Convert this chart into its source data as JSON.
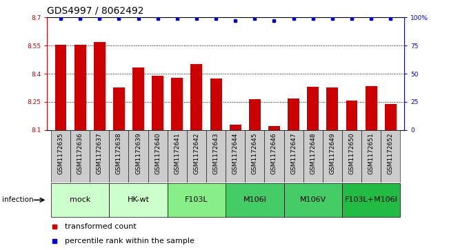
{
  "title": "GDS4997 / 8062492",
  "samples": [
    "GSM1172635",
    "GSM1172636",
    "GSM1172637",
    "GSM1172638",
    "GSM1172639",
    "GSM1172640",
    "GSM1172641",
    "GSM1172642",
    "GSM1172643",
    "GSM1172644",
    "GSM1172645",
    "GSM1172646",
    "GSM1172647",
    "GSM1172648",
    "GSM1172649",
    "GSM1172650",
    "GSM1172651",
    "GSM1172652"
  ],
  "bar_values": [
    8.553,
    8.553,
    8.57,
    8.328,
    8.435,
    8.39,
    8.38,
    8.45,
    8.375,
    8.128,
    8.265,
    8.12,
    8.268,
    8.33,
    8.328,
    8.258,
    8.335,
    8.24
  ],
  "percentile_values": [
    99,
    99,
    99,
    99,
    99,
    99,
    99,
    99,
    99,
    97,
    99,
    97,
    99,
    99,
    99,
    99,
    99,
    99
  ],
  "bar_color": "#cc0000",
  "percentile_color": "#0000cc",
  "ylim_left": [
    8.1,
    8.7
  ],
  "ylim_right": [
    0,
    100
  ],
  "yticks_left": [
    8.1,
    8.25,
    8.4,
    8.55,
    8.7
  ],
  "yticks_right": [
    0,
    25,
    50,
    75,
    100
  ],
  "ytick_labels_left": [
    "8.1",
    "8.25",
    "8.4",
    "8.55",
    "8.7"
  ],
  "ytick_labels_right": [
    "0",
    "25",
    "50",
    "75",
    "100%"
  ],
  "grid_yticks": [
    8.25,
    8.4,
    8.55
  ],
  "groups": [
    {
      "label": "mock",
      "start": 0,
      "end": 2,
      "color": "#ccffcc"
    },
    {
      "label": "HK-wt",
      "start": 3,
      "end": 5,
      "color": "#ccffcc"
    },
    {
      "label": "F103L",
      "start": 6,
      "end": 8,
      "color": "#88ee88"
    },
    {
      "label": "M106I",
      "start": 9,
      "end": 11,
      "color": "#44cc66"
    },
    {
      "label": "M106V",
      "start": 12,
      "end": 14,
      "color": "#44cc66"
    },
    {
      "label": "F103L+M106I",
      "start": 15,
      "end": 17,
      "color": "#22bb44"
    }
  ],
  "infection_label": "infection",
  "left_axis_color": "#cc0000",
  "right_axis_color": "#0000cc",
  "bg_color": "#ffffff",
  "bar_width": 0.6,
  "tick_label_fontsize": 6.5,
  "title_fontsize": 10,
  "group_label_fontsize": 8,
  "legend_fontsize": 8,
  "sample_bg_color": "#cccccc"
}
